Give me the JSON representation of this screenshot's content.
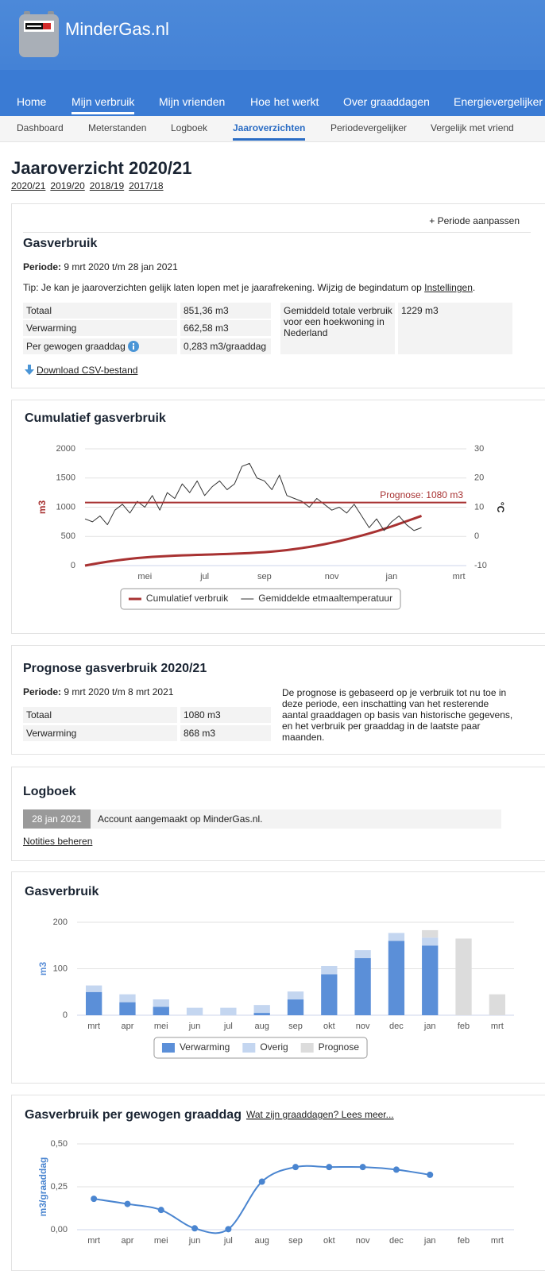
{
  "header": {
    "logo": "MinderGas.nl"
  },
  "nav": [
    "Home",
    "Mijn verbruik",
    "Mijn vrienden",
    "Hoe het werkt",
    "Over graaddagen",
    "Energievergelijker"
  ],
  "subnav": [
    "Dashboard",
    "Meterstanden",
    "Logboek",
    "Jaaroverzichten",
    "Periodevergelijker",
    "Vergelijk met vriend"
  ],
  "page": {
    "title": "Jaaroverzicht 2020/21",
    "years": [
      "2020/21",
      "2019/20",
      "2018/19",
      "2017/18"
    ]
  },
  "summary": {
    "action": "+ Periode aanpassen",
    "title": "Gasverbruik",
    "period_label": "Periode:",
    "period": "9 mrt 2020 t/m 28 jan 2021",
    "tip": "Tip: Je kan je jaaroverzichten gelijk laten lopen met je jaarafrekening. Wijzig de begindatum op ",
    "tip_link": "Instellingen",
    "tip_end": ".",
    "rows": [
      [
        "Totaal",
        "851,36 m3"
      ],
      [
        "Verwarming",
        "662,58 m3"
      ],
      [
        "Per gewogen graaddag",
        "0,283 m3/graaddag"
      ]
    ],
    "average": [
      "Gemiddeld totale verbruik voor een hoekwoning in Nederland",
      "1229 m3"
    ],
    "download": "Download CSV-bestand"
  },
  "prognosis": {
    "title": "Prognose gasverbruik 2020/21",
    "period_label": "Periode:",
    "period": "9 mrt 2020 t/m 8 mrt 2021",
    "rows": [
      [
        "Totaal",
        "1080 m3"
      ],
      [
        "Verwarming",
        "868 m3"
      ]
    ],
    "text": "De prognose is gebaseerd op je verbruik tot nu toe in deze periode, een inschatting van het resterende aantal graaddagen op basis van historische gegevens, en het verbruik per graaddag in de laatste paar maanden."
  },
  "logbook": {
    "title": "Logboek",
    "entries": [
      [
        "28 jan 2021",
        "Account aangemaakt op MinderGas.nl."
      ]
    ],
    "manage": "Notities beheren"
  },
  "chart_data": [
    {
      "type": "line",
      "title": "Cumulatief gasverbruik",
      "categories": [
        null,
        null,
        null,
        null,
        null,
        null,
        null,
        null,
        "mei",
        null,
        null,
        null,
        null,
        null,
        null,
        null,
        "jul",
        null,
        null,
        null,
        null,
        null,
        null,
        null,
        "sep",
        null,
        null,
        null,
        null,
        null,
        null,
        null,
        null,
        "nov",
        null,
        null,
        null,
        null,
        null,
        null,
        null,
        "jan",
        null,
        null,
        null,
        null,
        null,
        null,
        null,
        null,
        "mrt",
        null
      ],
      "series": [
        {
          "name": "Cumulatief verbruik",
          "color": "#a83232",
          "values": [
            0,
            24,
            46,
            66,
            84,
            101,
            116,
            129,
            140,
            149,
            157,
            164,
            170,
            175,
            179,
            183,
            187,
            191,
            195,
            199,
            204,
            209,
            215,
            222,
            230,
            240,
            252,
            266,
            282,
            300,
            320,
            342,
            366,
            392,
            420,
            450,
            482,
            515,
            550,
            588,
            628,
            670,
            715,
            760,
            805,
            851,
            null,
            null,
            null,
            null,
            null,
            null
          ]
        },
        {
          "name": "Gemiddelde etmaaltemperatuur",
          "color": "#333333",
          "axis": "y2",
          "values": [
            6,
            5,
            7,
            4,
            9,
            11,
            8,
            12,
            10,
            14,
            9,
            15,
            13,
            18,
            15,
            19,
            14,
            17,
            19,
            16,
            18,
            24,
            25,
            20,
            19,
            16,
            21,
            14,
            13,
            12,
            10,
            13,
            11,
            9,
            10,
            8,
            11,
            7,
            3,
            6,
            2,
            5,
            7,
            4,
            2,
            3,
            null,
            null,
            null,
            null,
            null,
            null
          ]
        }
      ],
      "ylabel": "m3",
      "y2label": "°C",
      "ylim": [
        0,
        2000
      ],
      "yticks": [
        0,
        500,
        1000,
        1500,
        2000
      ],
      "y2lim": [
        -10,
        30
      ],
      "y2ticks": [
        -10,
        0,
        10,
        20,
        30
      ],
      "annotation": {
        "label": "Prognose: 1080 m3",
        "value": 1080,
        "color": "#a83232"
      },
      "grid": true,
      "legend": "bottom"
    },
    {
      "type": "bar",
      "title": "Gasverbruik",
      "stacked": true,
      "categories": [
        "mrt",
        "apr",
        "mei",
        "jun",
        "jul",
        "aug",
        "sep",
        "okt",
        "nov",
        "dec",
        "jan",
        "feb",
        "mrt"
      ],
      "series": [
        {
          "name": "Verwarming",
          "color": "#5b8fd8",
          "values": [
            50,
            28,
            18,
            0,
            0,
            5,
            34,
            88,
            123,
            160,
            150,
            null,
            null
          ]
        },
        {
          "name": "Overig",
          "color": "#c4d6f0",
          "values": [
            14,
            17,
            16,
            16,
            16,
            17,
            17,
            18,
            17,
            17,
            17,
            null,
            null
          ]
        },
        {
          "name": "Prognose",
          "color": "#dcdcdc",
          "values": [
            null,
            null,
            null,
            null,
            null,
            null,
            null,
            null,
            null,
            null,
            16,
            165,
            45
          ]
        }
      ],
      "ylabel": "m3",
      "ylim": [
        0,
        200
      ],
      "yticks": [
        0,
        100,
        200
      ],
      "grid": true,
      "legend": "bottom"
    },
    {
      "type": "line",
      "title": "Gasverbruik per gewogen graaddag",
      "link": "Wat zijn graaddagen? Lees meer...",
      "categories": [
        "mrt",
        "apr",
        "mei",
        "jun",
        "jul",
        "aug",
        "sep",
        "okt",
        "nov",
        "dec",
        "jan",
        "feb",
        "mrt"
      ],
      "values": [
        0.18,
        0.15,
        0.115,
        0.008,
        0.003,
        0.28,
        0.365,
        0.365,
        0.365,
        0.35,
        0.32,
        null,
        null
      ],
      "color": "#4a85d0",
      "smooth": true,
      "markers": true,
      "ylabel": "m3/graaddag",
      "ylim": [
        0,
        0.5
      ],
      "yticks": [
        {
          "value": 0,
          "label": "0,00"
        },
        {
          "value": 0.25,
          "label": "0,25"
        },
        {
          "value": 0.5,
          "label": "0,50"
        }
      ],
      "grid": true
    }
  ]
}
